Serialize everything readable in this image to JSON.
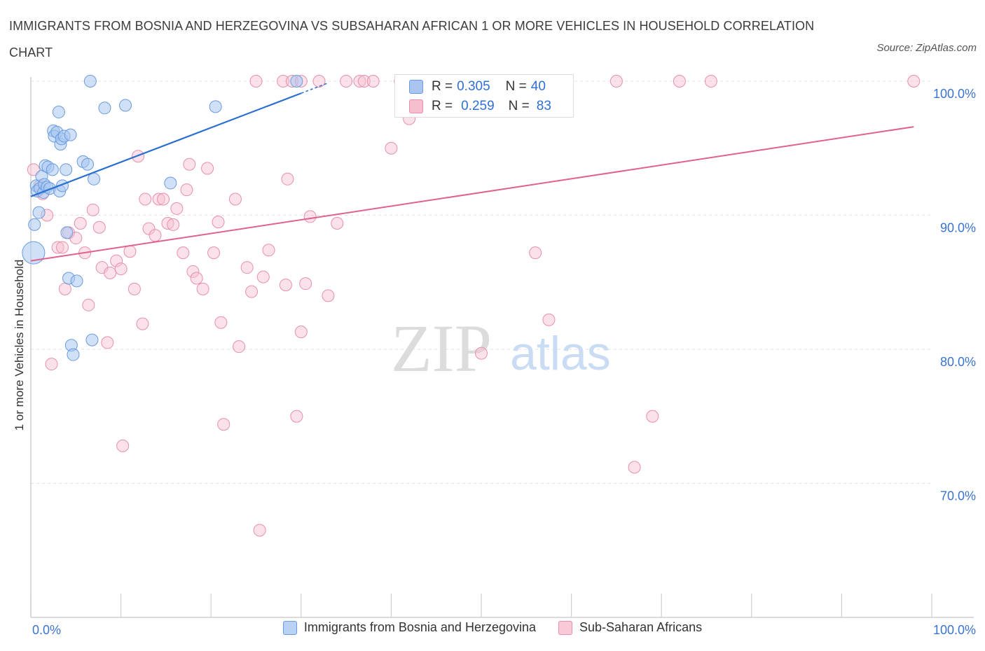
{
  "title": "IMMIGRANTS FROM BOSNIA AND HERZEGOVINA VS SUBSAHARAN AFRICAN 1 OR MORE VEHICLES IN HOUSEHOLD CORRELATION CHART",
  "source": "Source: ZipAtlas.com",
  "watermark": {
    "zip": "ZIP",
    "atlas": "atlas"
  },
  "stats": {
    "blue": {
      "r_label": "R = ",
      "r_value": "0.305",
      "n_label": "N = ",
      "n_value": "40"
    },
    "pink": {
      "r_label": "R = ",
      "r_value": "0.259",
      "n_label": "N = ",
      "n_value": "83"
    }
  },
  "colors": {
    "blue_fill": "#a8c6f0",
    "blue_stroke": "#6a9be0",
    "blue_line": "#2b6fd0",
    "pink_fill": "#f6bfd0",
    "pink_stroke": "#e88fab",
    "pink_line": "#e06090",
    "axis_text": "#3a73d0",
    "grid": "#e2e2e2"
  },
  "chart_data": {
    "type": "scatter",
    "title": "IMMIGRANTS FROM BOSNIA AND HERZEGOVINA VS SUBSAHARAN AFRICAN 1 OR MORE VEHICLES IN HOUSEHOLD CORRELATION CHART",
    "xlabel": "",
    "ylabel": "1 or more Vehicles in Household",
    "xlim": [
      0,
      100
    ],
    "ylim": [
      60,
      100
    ],
    "x_tick_labels": [
      "0.0%",
      "100.0%"
    ],
    "y_tick_labels": [
      "100.0%",
      "90.0%",
      "80.0%",
      "70.0%"
    ],
    "y_ticks": [
      100,
      90,
      80,
      70
    ],
    "grid": true,
    "legend_position": "bottom",
    "series": [
      {
        "name": "Immigrants from Bosnia and Herzegovina",
        "color": "#a8c6f0",
        "trend": {
          "x": [
            0,
            30
          ],
          "y": [
            91.4,
            99.1
          ]
        },
        "points": [
          [
            0.3,
            87.2
          ],
          [
            0.4,
            89.3
          ],
          [
            0.6,
            92.2
          ],
          [
            0.7,
            91.8
          ],
          [
            0.9,
            90.2
          ],
          [
            1.0,
            92.0
          ],
          [
            1.2,
            92.9
          ],
          [
            1.4,
            91.7
          ],
          [
            1.5,
            92.3
          ],
          [
            1.6,
            93.7
          ],
          [
            1.8,
            92.1
          ],
          [
            1.9,
            93.6
          ],
          [
            2.1,
            92.0
          ],
          [
            2.4,
            93.4
          ],
          [
            2.5,
            96.3
          ],
          [
            2.6,
            95.9
          ],
          [
            2.9,
            96.2
          ],
          [
            3.1,
            97.7
          ],
          [
            3.2,
            91.8
          ],
          [
            3.3,
            95.3
          ],
          [
            3.4,
            95.7
          ],
          [
            3.5,
            92.2
          ],
          [
            3.7,
            95.9
          ],
          [
            3.9,
            93.4
          ],
          [
            4.0,
            88.7
          ],
          [
            4.2,
            85.3
          ],
          [
            4.4,
            96.0
          ],
          [
            4.5,
            80.3
          ],
          [
            4.7,
            79.6
          ],
          [
            5.1,
            85.1
          ],
          [
            5.8,
            94.0
          ],
          [
            6.3,
            93.8
          ],
          [
            6.6,
            100.0
          ],
          [
            6.8,
            80.7
          ],
          [
            7.0,
            92.7
          ],
          [
            8.2,
            98.0
          ],
          [
            10.5,
            98.2
          ],
          [
            15.5,
            92.4
          ],
          [
            20.5,
            98.1
          ],
          [
            29.5,
            100.0
          ]
        ]
      },
      {
        "name": "Sub-Saharan Africans",
        "color": "#f6bfd0",
        "trend": {
          "x": [
            0,
            98
          ],
          "y": [
            86.6,
            96.6
          ]
        },
        "points": [
          [
            0.3,
            93.4
          ],
          [
            1.0,
            92.2
          ],
          [
            1.3,
            91.6
          ],
          [
            1.8,
            90.0
          ],
          [
            2.3,
            78.9
          ],
          [
            3.0,
            87.6
          ],
          [
            3.5,
            87.6
          ],
          [
            3.8,
            84.5
          ],
          [
            4.2,
            88.7
          ],
          [
            5.0,
            88.3
          ],
          [
            5.5,
            89.4
          ],
          [
            6.0,
            87.2
          ],
          [
            6.4,
            83.3
          ],
          [
            6.9,
            90.4
          ],
          [
            7.6,
            89.1
          ],
          [
            7.9,
            86.1
          ],
          [
            8.5,
            80.5
          ],
          [
            8.8,
            85.7
          ],
          [
            9.5,
            86.6
          ],
          [
            10.0,
            86.0
          ],
          [
            10.2,
            72.8
          ],
          [
            11.0,
            87.3
          ],
          [
            11.5,
            84.5
          ],
          [
            11.9,
            94.4
          ],
          [
            12.4,
            81.9
          ],
          [
            12.7,
            91.2
          ],
          [
            13.1,
            89.0
          ],
          [
            13.8,
            88.5
          ],
          [
            14.2,
            91.2
          ],
          [
            14.7,
            91.2
          ],
          [
            15.2,
            89.4
          ],
          [
            15.8,
            89.3
          ],
          [
            16.2,
            90.5
          ],
          [
            16.9,
            87.2
          ],
          [
            17.3,
            91.9
          ],
          [
            17.6,
            93.8
          ],
          [
            18.0,
            85.8
          ],
          [
            18.4,
            85.3
          ],
          [
            19.1,
            84.5
          ],
          [
            19.6,
            93.5
          ],
          [
            20.3,
            87.2
          ],
          [
            20.8,
            89.5
          ],
          [
            21.1,
            82.0
          ],
          [
            21.4,
            74.4
          ],
          [
            22.7,
            91.2
          ],
          [
            23.1,
            80.2
          ],
          [
            24.0,
            86.1
          ],
          [
            24.5,
            84.3
          ],
          [
            25.0,
            100.0
          ],
          [
            25.4,
            66.5
          ],
          [
            25.8,
            85.4
          ],
          [
            26.4,
            87.4
          ],
          [
            28.0,
            100.0
          ],
          [
            28.3,
            84.8
          ],
          [
            28.5,
            92.7
          ],
          [
            29.0,
            100.0
          ],
          [
            29.5,
            75.0
          ],
          [
            30.0,
            81.3
          ],
          [
            30.5,
            84.9
          ],
          [
            31.0,
            89.9
          ],
          [
            32.0,
            100.0
          ],
          [
            33.0,
            84.0
          ],
          [
            34.0,
            89.4
          ],
          [
            35.0,
            100.0
          ],
          [
            36.5,
            100.0
          ],
          [
            37.0,
            100.0
          ],
          [
            38.0,
            100.0
          ],
          [
            40.0,
            95.0
          ],
          [
            41.0,
            100.0
          ],
          [
            42.0,
            97.2
          ],
          [
            47.0,
            100.0
          ],
          [
            50.0,
            79.7
          ],
          [
            52.0,
            100.0
          ],
          [
            56.0,
            87.2
          ],
          [
            57.5,
            82.2
          ],
          [
            59.0,
            100.0
          ],
          [
            65.0,
            100.0
          ],
          [
            67.0,
            71.2
          ],
          [
            69.0,
            75.0
          ],
          [
            72.0,
            100.0
          ],
          [
            75.5,
            100.0
          ],
          [
            98.0,
            100.0
          ],
          [
            30.0,
            100.0
          ]
        ]
      }
    ]
  },
  "legend": {
    "blue_label": "Immigrants from Bosnia and Herzegovina",
    "pink_label": "Sub-Saharan Africans"
  }
}
